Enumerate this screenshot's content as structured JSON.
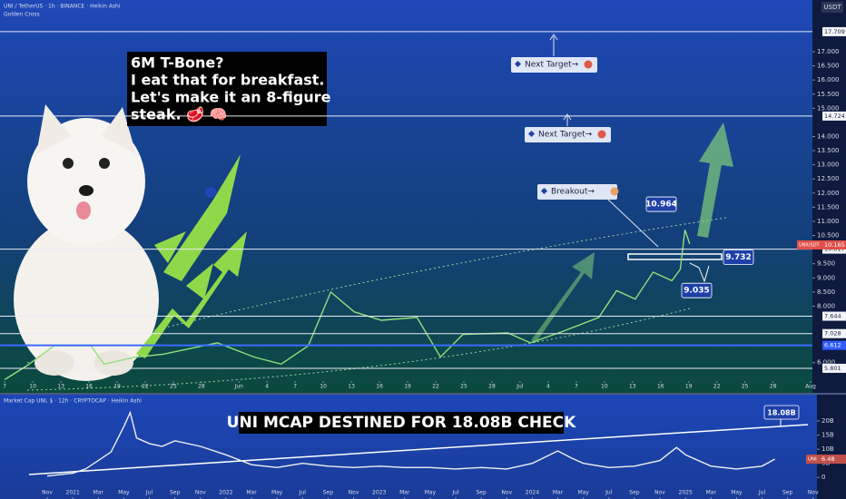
{
  "chart_data": [
    {
      "type": "line",
      "title": "UNI / TetherUS · 1h · BINANCE · Heikin Ashi",
      "subtitle": "Golden Cross",
      "unit": "USDT",
      "x": [
        0,
        2.4,
        5.3,
        9.2,
        10.6,
        14,
        16.9,
        22.7,
        26.6,
        29.5,
        32.4,
        34.8,
        37.3,
        40.2,
        44,
        46.5,
        48.9,
        53.7,
        56.1,
        59.5,
        63.4,
        65.3,
        67.3,
        69.2,
        71.2,
        72.1,
        72.6,
        73.1
      ],
      "series": [
        {
          "name": "UNIUSDT",
          "color": "#8fe07a",
          "values": [
            5.4,
            5.9,
            6.6,
            6.6,
            5.95,
            6.2,
            6.3,
            6.7,
            6.2,
            5.95,
            6.6,
            8.5,
            7.8,
            7.5,
            7.6,
            6.2,
            7.0,
            7.05,
            6.7,
            7.1,
            7.6,
            8.55,
            8.25,
            9.2,
            8.9,
            9.3,
            10.7,
            10.2
          ]
        }
      ],
      "last_price": 10.165,
      "levels": [
        17.709,
        14.724,
        10.017,
        7.644,
        7.028,
        6.612,
        5.801
      ],
      "price_labels": [
        10.964,
        9.732,
        9.035
      ],
      "annotations": [
        "Next Target→",
        "Next Target→",
        "Breakout→"
      ],
      "meme_lines": [
        "6M T-Bone?",
        "I eat that for breakfast.",
        "Let's make it an 8-figure",
        "steak. 🥩 🧠"
      ],
      "xlim": [
        -0.5,
        86.2
      ],
      "xticks": [
        {
          "value": 0,
          "label": "7"
        },
        {
          "value": 3,
          "label": "10"
        },
        {
          "value": 6,
          "label": "13"
        },
        {
          "value": 9,
          "label": "16"
        },
        {
          "value": 12,
          "label": "19"
        },
        {
          "value": 15,
          "label": "22"
        },
        {
          "value": 18,
          "label": "25"
        },
        {
          "value": 21,
          "label": "28"
        },
        {
          "value": 25,
          "label": "Jun"
        },
        {
          "value": 28,
          "label": "4"
        },
        {
          "value": 31,
          "label": "7"
        },
        {
          "value": 34,
          "label": "10"
        },
        {
          "value": 37,
          "label": "13"
        },
        {
          "value": 40,
          "label": "16"
        },
        {
          "value": 43,
          "label": "19"
        },
        {
          "value": 46,
          "label": "22"
        },
        {
          "value": 49,
          "label": "25"
        },
        {
          "value": 52,
          "label": "28"
        },
        {
          "value": 55,
          "label": "Jul"
        },
        {
          "value": 58,
          "label": "4"
        },
        {
          "value": 61,
          "label": "7"
        },
        {
          "value": 64,
          "label": "10"
        },
        {
          "value": 67,
          "label": "13"
        },
        {
          "value": 70,
          "label": "16"
        },
        {
          "value": 73,
          "label": "19"
        },
        {
          "value": 76,
          "label": "22"
        },
        {
          "value": 79,
          "label": "25"
        },
        {
          "value": 82,
          "label": "28"
        },
        {
          "value": 86,
          "label": "Aug"
        }
      ],
      "ylim": [
        5.35,
        18.83
      ],
      "yticks": [
        {
          "value": 6,
          "label": "6.000"
        },
        {
          "value": 8,
          "label": "8.000"
        },
        {
          "value": 8.5,
          "label": "8.500"
        },
        {
          "value": 9,
          "label": "9.000"
        },
        {
          "value": 9.5,
          "label": "9.500"
        },
        {
          "value": 10.5,
          "label": "10.500"
        },
        {
          "value": 11,
          "label": "11.000"
        },
        {
          "value": 11.5,
          "label": "11.500"
        },
        {
          "value": 12,
          "label": "12.000"
        },
        {
          "value": 12.5,
          "label": "12.500"
        },
        {
          "value": 13,
          "label": "13.000"
        },
        {
          "value": 13.5,
          "label": "13.500"
        },
        {
          "value": 14,
          "label": "14.000"
        },
        {
          "value": 15,
          "label": "15.000"
        },
        {
          "value": 15.5,
          "label": "15.500"
        },
        {
          "value": 16,
          "label": "16.000"
        },
        {
          "value": 16.5,
          "label": "16.500"
        },
        {
          "value": 17,
          "label": "17.000"
        }
      ],
      "grid": false
    },
    {
      "type": "line",
      "title": "Market Cap UNI, $ · 12h · CRYPTOCAP · Heikin Ashi",
      "banner": "UNI MCAP DESTINED FOR 18.08B CHECK",
      "target": {
        "value": 18.08,
        "label": "18.08B"
      },
      "x": [
        0,
        1,
        2,
        3,
        4,
        5,
        6,
        6.5,
        7,
        8,
        9,
        10,
        12,
        14,
        16,
        18,
        20,
        22,
        24,
        26,
        28,
        30,
        32,
        34,
        36,
        38,
        40,
        41,
        42,
        44,
        46,
        48,
        49.3,
        50,
        52,
        54,
        56,
        57
      ],
      "series": [
        {
          "name": "UNI",
          "color": "#f0f0f0",
          "values": [
            0.5,
            1,
            1.5,
            3,
            6,
            9,
            18,
            23,
            14,
            12,
            11,
            13,
            11,
            8,
            4.5,
            3.5,
            5,
            4,
            3.5,
            4,
            3.5,
            3.5,
            3,
            3.5,
            3,
            5,
            9.4,
            7,
            5,
            3.5,
            4,
            6,
            10.6,
            8,
            4,
            3,
            4,
            6.5
          ]
        }
      ],
      "last_value": 6.48,
      "xlim": [
        -3.7,
        60.3
      ],
      "xticks": [
        {
          "value": 0,
          "label": "Nov"
        },
        {
          "value": 2,
          "label": "2021"
        },
        {
          "value": 4,
          "label": "Mar"
        },
        {
          "value": 6,
          "label": "May"
        },
        {
          "value": 8,
          "label": "Jul"
        },
        {
          "value": 10,
          "label": "Sep"
        },
        {
          "value": 12,
          "label": "Nov"
        },
        {
          "value": 14,
          "label": "2022"
        },
        {
          "value": 16,
          "label": "Mar"
        },
        {
          "value": 18,
          "label": "May"
        },
        {
          "value": 20,
          "label": "Jul"
        },
        {
          "value": 22,
          "label": "Sep"
        },
        {
          "value": 24,
          "label": "Nov"
        },
        {
          "value": 26,
          "label": "2023"
        },
        {
          "value": 28,
          "label": "Mar"
        },
        {
          "value": 30,
          "label": "May"
        },
        {
          "value": 32,
          "label": "Jul"
        },
        {
          "value": 34,
          "label": "Sep"
        },
        {
          "value": 36,
          "label": "Nov"
        },
        {
          "value": 38,
          "label": "2024"
        },
        {
          "value": 40,
          "label": "Mar"
        },
        {
          "value": 42,
          "label": "May"
        },
        {
          "value": 44,
          "label": "Jul"
        },
        {
          "value": 46,
          "label": "Sep"
        },
        {
          "value": 48,
          "label": "Nov"
        },
        {
          "value": 50,
          "label": "2025"
        },
        {
          "value": 52,
          "label": "Mar"
        },
        {
          "value": 54,
          "label": "May"
        },
        {
          "value": 56,
          "label": "Jul"
        },
        {
          "value": 58,
          "label": "Sep"
        },
        {
          "value": 60,
          "label": "Nov"
        }
      ],
      "ylim": [
        -7,
        29
      ],
      "yticks": [
        0,
        {
          "value": 5,
          "label": "5B"
        },
        {
          "value": 10,
          "label": "10B"
        },
        {
          "value": 15,
          "label": "15B"
        },
        {
          "value": 20,
          "label": "20B"
        }
      ],
      "grid": false
    }
  ]
}
